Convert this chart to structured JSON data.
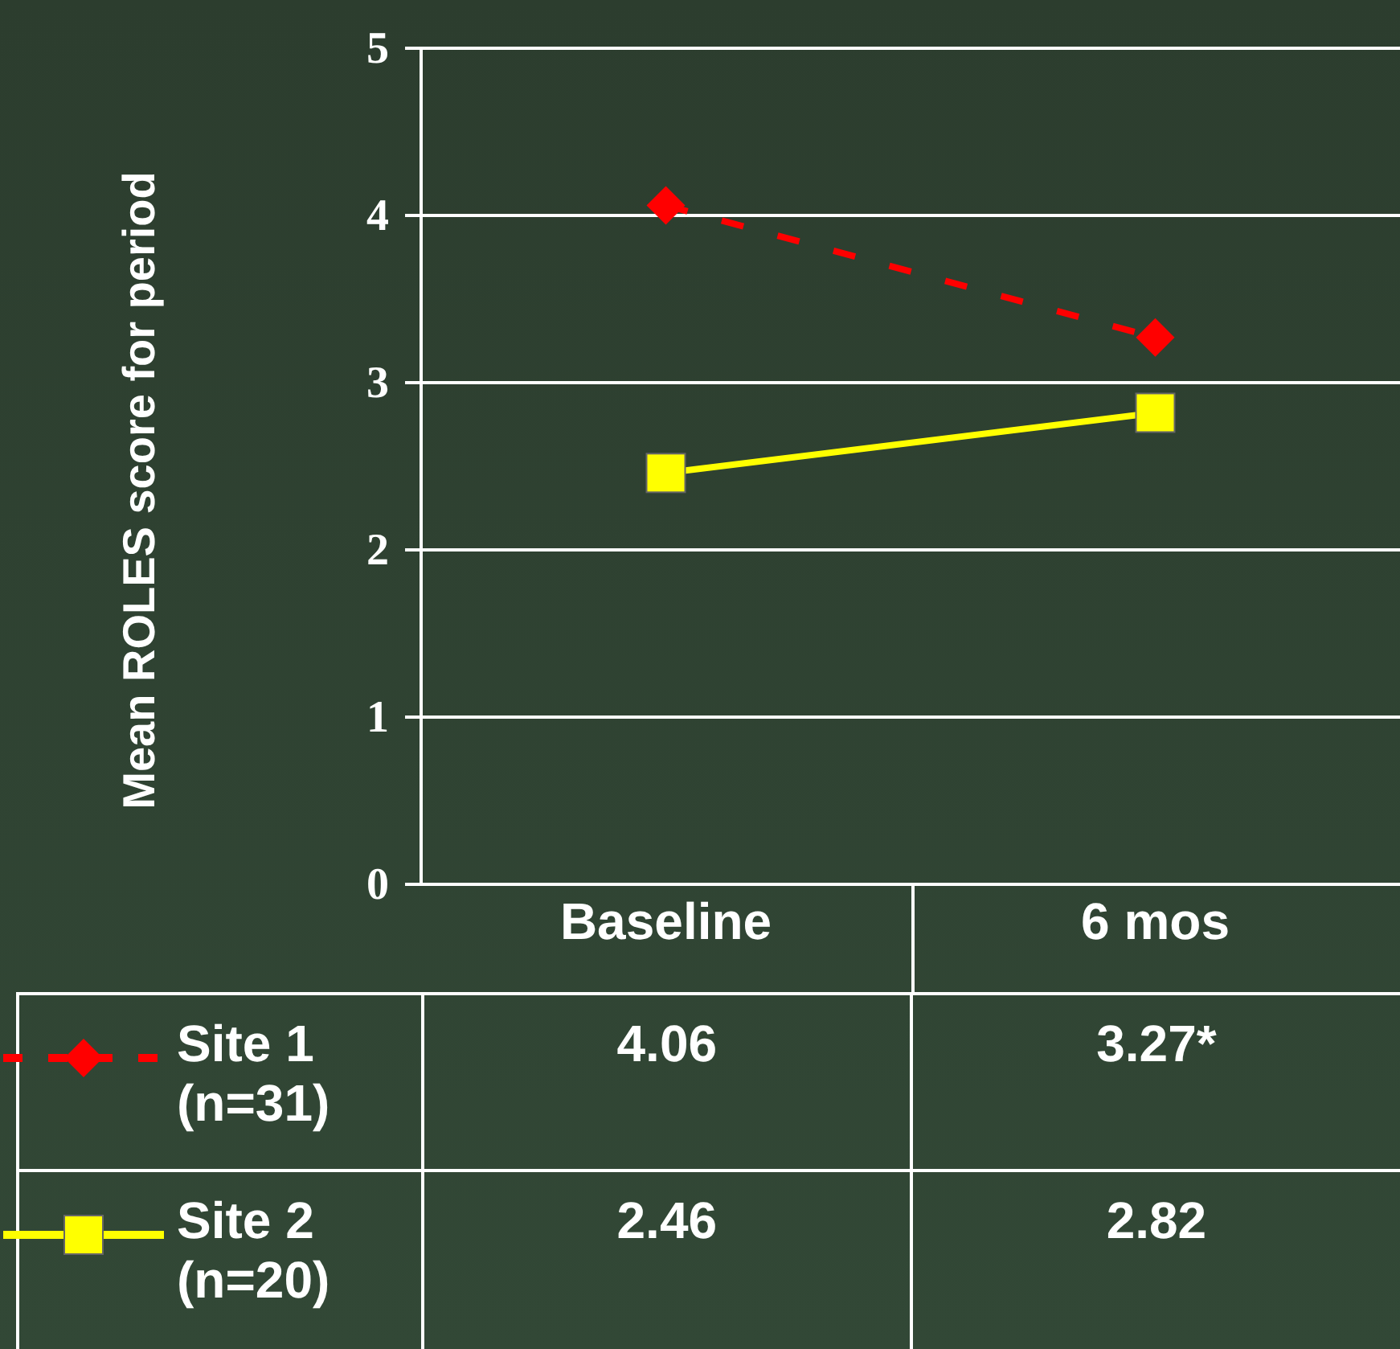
{
  "chart_data": {
    "type": "line",
    "ylabel": "Mean ROLES score for period",
    "categories": [
      "Baseline",
      "6 mos"
    ],
    "series": [
      {
        "name": "Site 1 (n=31)",
        "color": "#ff0000",
        "values": [
          4.06,
          3.27
        ],
        "value_labels": [
          "4.06",
          "3.27*"
        ],
        "line_style": "dashed",
        "marker": "diamond"
      },
      {
        "name": "Site 2 (n=20)",
        "color": "#ffff00",
        "values": [
          2.46,
          2.82
        ],
        "value_labels": [
          "2.46",
          "2.82"
        ],
        "line_style": "solid",
        "marker": "square"
      }
    ],
    "ylim": [
      0,
      5
    ],
    "yticks": [
      0,
      1,
      2,
      3,
      4,
      5
    ],
    "grid": "y",
    "legend": "bottom"
  }
}
